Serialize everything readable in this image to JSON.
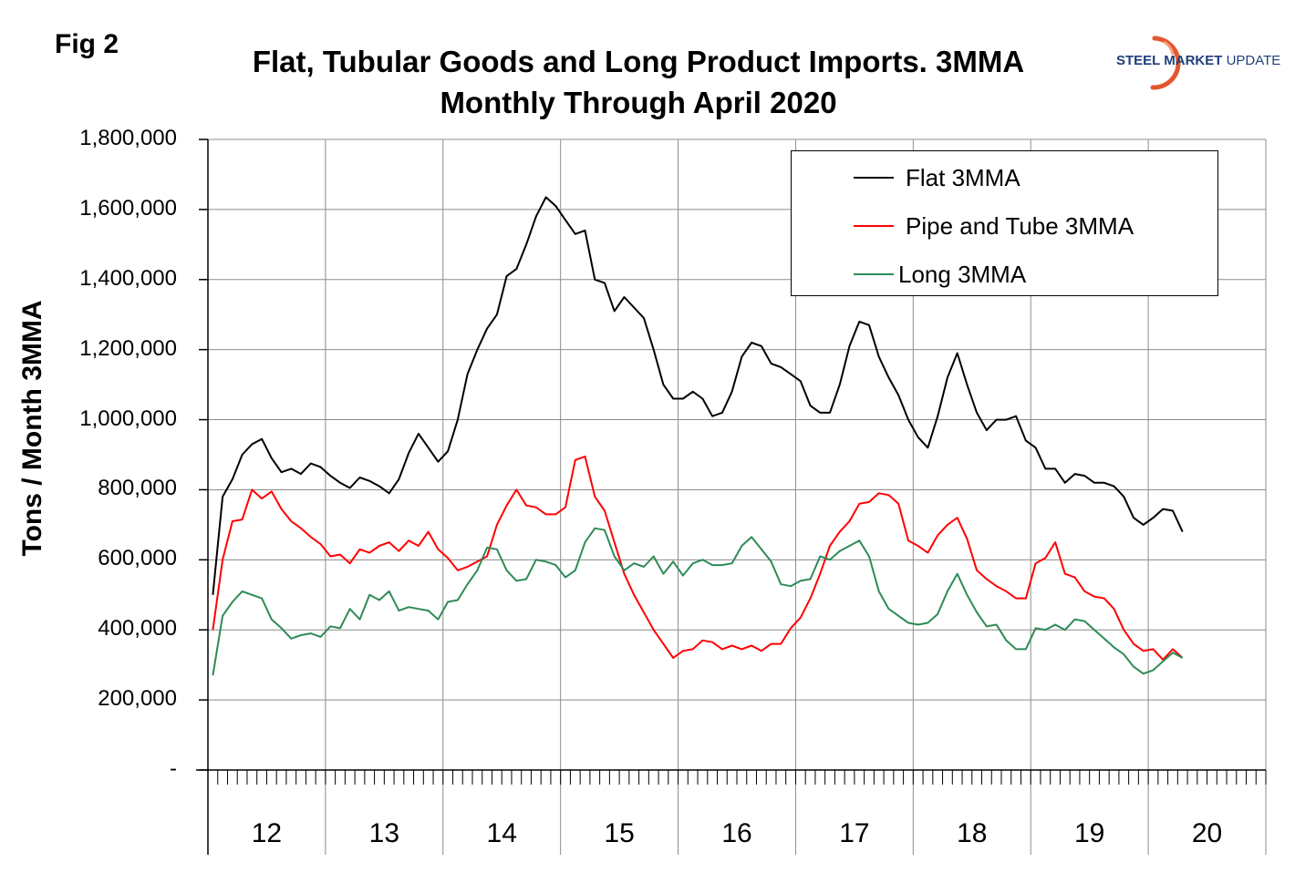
{
  "figure": {
    "label": "Fig 2",
    "title_line1": "Flat, Tubular Goods and Long Product Imports. 3MMA",
    "title_line2": "Monthly Through April 2020",
    "logo_text_bold": "STEEL MARKET",
    "logo_text_light": " UPDATE",
    "logo_colors": {
      "text": "#1f3f7a",
      "arc": "#e4572e"
    }
  },
  "chart_data": {
    "type": "line",
    "title": "Flat, Tubular Goods and Long Product Imports. 3MMA Monthly Through April 2020",
    "ylabel": "Tons / Month 3MMA",
    "xlabel": "",
    "ylim": [
      0,
      1800000
    ],
    "y_ticks": [
      {
        "value": 0,
        "label": "-"
      },
      {
        "value": 200000,
        "label": "200,000"
      },
      {
        "value": 400000,
        "label": "400,000"
      },
      {
        "value": 600000,
        "label": "600,000"
      },
      {
        "value": 800000,
        "label": "800,000"
      },
      {
        "value": 1000000,
        "label": "1,000,000"
      },
      {
        "value": 1200000,
        "label": "1,200,000"
      },
      {
        "value": 1400000,
        "label": "1,400,000"
      },
      {
        "value": 1600000,
        "label": "1,600,000"
      },
      {
        "value": 1800000,
        "label": "1,800,000"
      }
    ],
    "x_start": "Jan 2012",
    "x_end": "Apr 2020",
    "x_year_labels": [
      "12",
      "13",
      "14",
      "15",
      "16",
      "17",
      "18",
      "19",
      "20"
    ],
    "grid": true,
    "legend_position": "top-right",
    "series": [
      {
        "name": "Flat 3MMA",
        "color": "#000000",
        "values": [
          500000,
          780000,
          830000,
          900000,
          930000,
          945000,
          890000,
          850000,
          860000,
          845000,
          875000,
          865000,
          840000,
          820000,
          805000,
          835000,
          825000,
          810000,
          790000,
          830000,
          905000,
          960000,
          920000,
          880000,
          910000,
          1000000,
          1130000,
          1200000,
          1260000,
          1300000,
          1410000,
          1430000,
          1500000,
          1580000,
          1635000,
          1610000,
          1570000,
          1530000,
          1540000,
          1400000,
          1390000,
          1310000,
          1350000,
          1320000,
          1290000,
          1200000,
          1100000,
          1060000,
          1060000,
          1080000,
          1060000,
          1010000,
          1020000,
          1080000,
          1180000,
          1220000,
          1210000,
          1160000,
          1150000,
          1130000,
          1110000,
          1040000,
          1020000,
          1020000,
          1100000,
          1210000,
          1280000,
          1270000,
          1180000,
          1120000,
          1070000,
          1000000,
          950000,
          920000,
          1010000,
          1120000,
          1190000,
          1100000,
          1020000,
          970000,
          1000000,
          1000000,
          1010000,
          940000,
          920000,
          860000,
          860000,
          820000,
          845000,
          840000,
          820000,
          820000,
          810000,
          780000,
          720000,
          700000,
          720000,
          745000,
          740000,
          680000
        ]
      },
      {
        "name": "Pipe and Tube 3MMA",
        "color": "#ff0000",
        "values": [
          400000,
          600000,
          710000,
          715000,
          800000,
          775000,
          795000,
          745000,
          710000,
          690000,
          665000,
          645000,
          610000,
          615000,
          590000,
          630000,
          620000,
          640000,
          650000,
          625000,
          655000,
          640000,
          680000,
          630000,
          605000,
          570000,
          580000,
          595000,
          610000,
          700000,
          755000,
          800000,
          755000,
          750000,
          730000,
          730000,
          750000,
          885000,
          895000,
          780000,
          740000,
          650000,
          560000,
          500000,
          450000,
          400000,
          360000,
          320000,
          340000,
          345000,
          370000,
          365000,
          345000,
          355000,
          345000,
          355000,
          340000,
          360000,
          360000,
          405000,
          435000,
          490000,
          560000,
          640000,
          680000,
          710000,
          760000,
          765000,
          790000,
          785000,
          760000,
          655000,
          640000,
          620000,
          670000,
          700000,
          720000,
          660000,
          570000,
          545000,
          525000,
          510000,
          490000,
          490000,
          590000,
          605000,
          650000,
          560000,
          550000,
          510000,
          495000,
          490000,
          460000,
          400000,
          360000,
          340000,
          345000,
          315000,
          345000,
          320000
        ]
      },
      {
        "name": "Long 3MMA",
        "color": "#2e8b57",
        "values": [
          270000,
          440000,
          480000,
          510000,
          500000,
          490000,
          430000,
          405000,
          375000,
          385000,
          390000,
          380000,
          410000,
          405000,
          460000,
          430000,
          500000,
          485000,
          510000,
          455000,
          465000,
          460000,
          455000,
          430000,
          480000,
          485000,
          530000,
          570000,
          635000,
          630000,
          570000,
          540000,
          545000,
          600000,
          595000,
          585000,
          550000,
          570000,
          650000,
          690000,
          685000,
          610000,
          570000,
          590000,
          580000,
          610000,
          560000,
          595000,
          555000,
          590000,
          600000,
          585000,
          585000,
          590000,
          640000,
          665000,
          630000,
          595000,
          530000,
          525000,
          540000,
          545000,
          610000,
          600000,
          625000,
          640000,
          655000,
          610000,
          510000,
          460000,
          440000,
          420000,
          415000,
          420000,
          445000,
          510000,
          560000,
          500000,
          450000,
          410000,
          415000,
          370000,
          345000,
          345000,
          405000,
          400000,
          415000,
          400000,
          430000,
          425000,
          400000,
          375000,
          350000,
          330000,
          295000,
          275000,
          285000,
          310000,
          335000,
          320000
        ]
      }
    ]
  }
}
